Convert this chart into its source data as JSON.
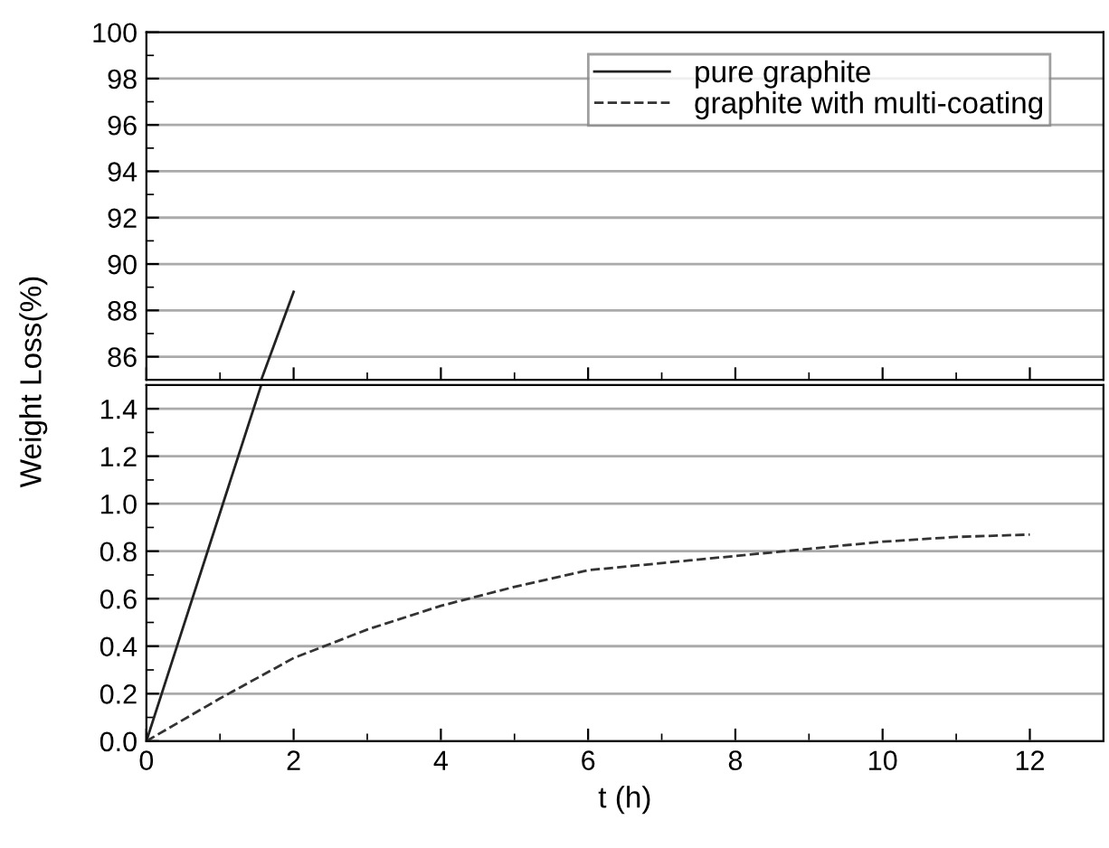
{
  "chart_data": [
    {
      "type": "line",
      "ylabel": "Weight Loss(%)",
      "xlim": [
        0,
        13
      ],
      "ylim": [
        85,
        100
      ],
      "xticks": [
        0,
        {
          "value": 1,
          "label": null
        },
        2,
        {
          "value": 3,
          "label": null
        },
        4,
        {
          "value": 5,
          "label": null
        },
        6,
        {
          "value": 7,
          "label": null
        },
        8,
        {
          "value": 9,
          "label": null
        },
        10,
        {
          "value": 11,
          "label": null
        },
        12
      ],
      "yticks": [
        86,
        {
          "value": 87,
          "label": null
        },
        88,
        {
          "value": 89,
          "label": null
        },
        90,
        {
          "value": 91,
          "label": null
        },
        92,
        {
          "value": 93,
          "label": null
        },
        94,
        {
          "value": 95,
          "label": null
        },
        96,
        {
          "value": 97,
          "label": null
        },
        98,
        {
          "value": 99,
          "label": null
        },
        100
      ],
      "tick_labels": "y",
      "grid": "y",
      "legend": "top right",
      "series": [
        {
          "name": "pure graphite",
          "color": "#222222",
          "line_style": "solid",
          "x": [
            1.56,
            2
          ],
          "values": [
            85,
            88.8
          ]
        },
        {
          "name": "graphite with multi-coating",
          "color": "#333333",
          "line_style": "dashed"
        }
      ]
    },
    {
      "type": "line",
      "xlabel": "t (h)",
      "xlim": [
        0,
        13
      ],
      "ylim": [
        0,
        1.5
      ],
      "xticks": [
        0,
        {
          "value": 1,
          "label": null
        },
        2,
        {
          "value": 3,
          "label": null
        },
        4,
        {
          "value": 5,
          "label": null
        },
        6,
        {
          "value": 7,
          "label": null
        },
        8,
        {
          "value": 9,
          "label": null
        },
        10,
        {
          "value": 11,
          "label": null
        },
        12
      ],
      "yticks": [
        {
          "value": 0,
          "label": "0.0"
        },
        {
          "value": 0.1,
          "label": null
        },
        0.2,
        {
          "value": 0.3,
          "label": null
        },
        0.4,
        {
          "value": 0.5,
          "label": null
        },
        0.6,
        {
          "value": 0.7,
          "label": null
        },
        0.8,
        {
          "value": 0.9,
          "label": null
        },
        {
          "value": 1,
          "label": "1.0"
        },
        {
          "value": 1.1,
          "label": null
        },
        1.2,
        {
          "value": 1.3,
          "label": null
        },
        1.4
      ],
      "grid": "y",
      "series": [
        {
          "color": "#222222",
          "line_style": "solid",
          "x": [
            0,
            1.56
          ],
          "values": [
            0,
            1.5
          ]
        },
        {
          "color": "#333333",
          "line_style": "dashed",
          "x": [
            0,
            1,
            2,
            3,
            4,
            5,
            6,
            7,
            8,
            9,
            10,
            11,
            12
          ],
          "values": [
            0,
            0.18,
            0.35,
            0.47,
            0.57,
            0.65,
            0.72,
            0.75,
            0.78,
            0.81,
            0.84,
            0.86,
            0.87
          ]
        }
      ]
    }
  ]
}
